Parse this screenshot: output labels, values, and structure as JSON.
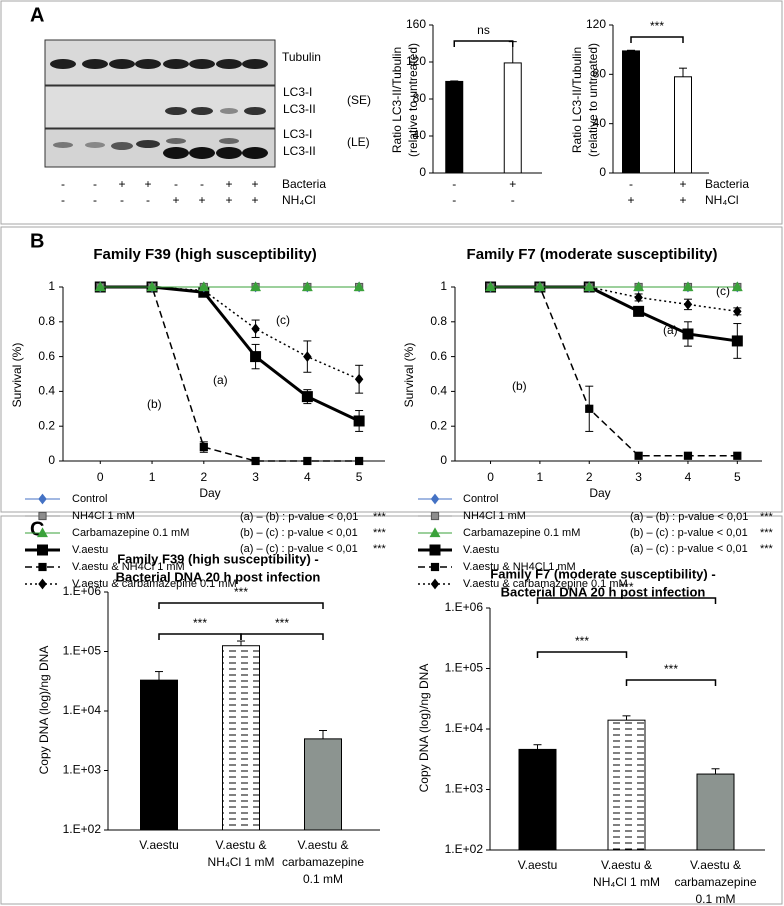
{
  "panel_labels": [
    "A",
    "B",
    "C"
  ],
  "blot": {
    "labels": [
      "Tubulin",
      "LC3-I",
      "LC3-II",
      "(SE)",
      "LC3-I",
      "LC3-II",
      "(LE)"
    ],
    "conditions": [
      {
        "name": "Bacteria",
        "signs": [
          "-",
          "-",
          "+",
          "+",
          "-",
          "-",
          "+",
          "+"
        ]
      },
      {
        "name": "NH₄Cl",
        "signs": [
          "-",
          "-",
          "-",
          "-",
          "+",
          "+",
          "+",
          "+"
        ]
      }
    ]
  },
  "chart_data": [
    {
      "type": "bar",
      "ylabel": [
        "Ratio LC3-II/Tubulin",
        "(relative to untreated)"
      ],
      "values": [
        99,
        119
      ],
      "errors": [
        0.5,
        23
      ],
      "colors": [
        "#000000",
        "#ffffff"
      ],
      "ylim": [
        0,
        160
      ],
      "yticks": [
        0,
        40,
        80,
        120,
        160
      ],
      "conditions": [
        {
          "signs": [
            "-",
            "+"
          ]
        },
        {
          "signs": [
            "-",
            "-"
          ]
        }
      ],
      "brackets": [
        {
          "pair": [
            0,
            1
          ],
          "label": "ns"
        }
      ]
    },
    {
      "type": "bar",
      "ylabel": [
        "Ratio LC3-II/Tubulin",
        "(relative to untreated)"
      ],
      "values": [
        99,
        78
      ],
      "errors": [
        0.5,
        7
      ],
      "colors": [
        "#000000",
        "#ffffff"
      ],
      "ylim": [
        0,
        120
      ],
      "yticks": [
        0,
        40,
        80,
        120
      ],
      "conditions": [
        {
          "name": "Bacteria",
          "signs": [
            "-",
            "+"
          ]
        },
        {
          "name": "NH₄Cl",
          "signs": [
            "+",
            "+"
          ]
        }
      ],
      "brackets": [
        {
          "pair": [
            0,
            1
          ],
          "label": "***"
        }
      ]
    },
    {
      "type": "line",
      "title": "Family F39 (high susceptibility)",
      "ylabel": "Survival (%)",
      "xlabel": "Day",
      "x": [
        0,
        1,
        2,
        3,
        4,
        5
      ],
      "xlim": [
        -0.72,
        5.5
      ],
      "xticks": [
        0,
        1,
        2,
        3,
        4,
        5
      ],
      "ylim": [
        0,
        1
      ],
      "yticks": [
        0,
        0.2,
        0.4,
        0.6,
        0.8,
        1
      ],
      "series": [
        {
          "name": "Control",
          "color": "#4472c4",
          "marker": "diamond",
          "dash": "solid",
          "line_width": 1,
          "values": [
            1,
            1,
            1,
            1,
            1,
            1
          ]
        },
        {
          "name": "NH4Cl 1 mM",
          "color": "#8c8c8c",
          "marker": "square",
          "dash": "solid",
          "line_width": 1,
          "values": [
            1,
            1,
            1,
            1,
            1,
            1
          ]
        },
        {
          "name": "Carbamazepine 0.1 mM",
          "color": "#3aa23a",
          "marker": "triangle",
          "dash": "solid",
          "line_width": 1,
          "values": [
            1,
            1,
            1,
            1,
            1,
            1
          ]
        },
        {
          "name": "V.aestu",
          "color": "#000000",
          "marker": "square",
          "dash": "solid",
          "line_width": 3,
          "values": [
            1,
            1,
            0.97,
            0.6,
            0.37,
            0.23
          ],
          "errors": [
            null,
            null,
            0.02,
            0.07,
            0.04,
            0.06
          ]
        },
        {
          "name": "V.aestu & NH4Cl 1 mM",
          "color": "#000000",
          "marker": "square",
          "dash": "dashed",
          "line_width": 1.5,
          "values": [
            1,
            1,
            0.08,
            0,
            0,
            0
          ],
          "errors": [
            null,
            null,
            0.03,
            null,
            null,
            null
          ]
        },
        {
          "name": "V.aestu & carbamazepine 0.1 mM",
          "color": "#000000",
          "marker": "diamond",
          "dash": "dotted",
          "line_width": 1.5,
          "values": [
            1,
            1,
            0.98,
            0.76,
            0.6,
            0.47
          ],
          "errors": [
            null,
            null,
            null,
            0.05,
            0.09,
            0.08
          ]
        }
      ],
      "annotations": [
        "(a)",
        "(b)",
        "(c)"
      ],
      "notes": [
        {
          "text": "(a) – (b) : p-value < 0,01",
          "sig": "***"
        },
        {
          "text": "(b) – (c) : p-value < 0,01",
          "sig": "***"
        },
        {
          "text": "(a) – (c) : p-value < 0,01",
          "sig": "***"
        }
      ]
    },
    {
      "type": "line",
      "title": "Family F7 (moderate susceptibility)",
      "ylabel": "Survival (%)",
      "xlabel": "Day",
      "x": [
        0,
        1,
        2,
        3,
        4,
        5
      ],
      "xlim": [
        -0.72,
        5.5
      ],
      "xticks": [
        0,
        1,
        2,
        3,
        4,
        5
      ],
      "ylim": [
        0,
        1
      ],
      "yticks": [
        0,
        0.2,
        0.4,
        0.6,
        0.8,
        1
      ],
      "series": [
        {
          "name": "Control",
          "color": "#4472c4",
          "marker": "diamond",
          "dash": "solid",
          "line_width": 1,
          "values": [
            1,
            1,
            1,
            1,
            1,
            1
          ]
        },
        {
          "name": "NH4Cl 1 mM",
          "color": "#8c8c8c",
          "marker": "square",
          "dash": "solid",
          "line_width": 1,
          "values": [
            1,
            1,
            1,
            1,
            1,
            1
          ]
        },
        {
          "name": "Carbamazepine 0.1 mM",
          "color": "#3aa23a",
          "marker": "triangle",
          "dash": "solid",
          "line_width": 1,
          "values": [
            1,
            1,
            1,
            1,
            1,
            1
          ]
        },
        {
          "name": "V.aestu",
          "color": "#000000",
          "marker": "square",
          "dash": "solid",
          "line_width": 3,
          "values": [
            1,
            1,
            1,
            0.86,
            0.73,
            0.69
          ],
          "errors": [
            null,
            null,
            null,
            0.02,
            0.07,
            0.1
          ]
        },
        {
          "name": "V.aestu & NH4Cl 1 mM",
          "color": "#000000",
          "marker": "square",
          "dash": "dashed",
          "line_width": 1.5,
          "values": [
            1,
            1,
            0.3,
            0.03,
            0.03,
            0.03
          ],
          "errors": [
            null,
            null,
            0.13,
            null,
            null,
            null
          ]
        },
        {
          "name": "V.aestu & carbamazepine 0.1 mM",
          "color": "#000000",
          "marker": "diamond",
          "dash": "dotted",
          "line_width": 1.5,
          "values": [
            1,
            1,
            1,
            0.94,
            0.9,
            0.86
          ],
          "errors": [
            null,
            null,
            null,
            0.02,
            0.03,
            0.02
          ]
        }
      ],
      "annotations": [
        "(a)",
        "(b)",
        "(c)"
      ],
      "notes": [
        {
          "text": "(a) – (b) : p-value < 0,01",
          "sig": "***"
        },
        {
          "text": "(b) – (c) : p-value < 0,01",
          "sig": "***"
        },
        {
          "text": "(a) – (c) : p-value < 0,01",
          "sig": "***"
        }
      ]
    },
    {
      "type": "bar",
      "title": "Family F39 (high susceptibility) -",
      "subtitle": "Bacterial DNA 20 h post infection",
      "ylabel": "Copy DNA (log)/ng DNA",
      "categories": [
        "V.aestu",
        "V.aestu & NH₄Cl 1 mM",
        "V.aestu & carbamazepine 0.1 mM"
      ],
      "values": [
        33000,
        125000,
        3400
      ],
      "errors": [
        13000,
        25000,
        1300
      ],
      "colors": [
        "#000000",
        "#ffffff",
        "#8c9490"
      ],
      "hatch": [
        null,
        "dashes",
        null
      ],
      "log_scale": true,
      "ylim": [
        100,
        1000000
      ],
      "yticks": [
        {
          "value": 100,
          "label": "1.E+02"
        },
        {
          "value": 1000,
          "label": "1.E+03"
        },
        {
          "value": 10000,
          "label": "1.E+04"
        },
        {
          "value": 100000,
          "label": "1.E+05"
        },
        {
          "value": 1000000,
          "label": "1.E+06"
        }
      ],
      "brackets": [
        {
          "pair": [
            0,
            2
          ],
          "label": "***"
        },
        {
          "pair": [
            0,
            1
          ],
          "label": "***"
        },
        {
          "pair": [
            1,
            2
          ],
          "label": "***"
        }
      ]
    },
    {
      "type": "bar",
      "title": "Family F7 (moderate susceptibility) -",
      "subtitle": "Bacterial DNA 20 h post infection",
      "ylabel": "Copy DNA (log)/ng DNA",
      "categories": [
        "V.aestu",
        "V.aestu & NH₄Cl 1 mM",
        "V.aestu & carbamazepine 0.1 mM"
      ],
      "values": [
        4600,
        14000,
        1800
      ],
      "errors": [
        900,
        2500,
        400
      ],
      "colors": [
        "#000000",
        "#ffffff",
        "#8c9490"
      ],
      "hatch": [
        null,
        "dashes",
        null
      ],
      "log_scale": true,
      "ylim": [
        100,
        1000000
      ],
      "yticks": [
        {
          "value": 100,
          "label": "1.E+02"
        },
        {
          "value": 1000,
          "label": "1.E+03"
        },
        {
          "value": 10000,
          "label": "1.E+04"
        },
        {
          "value": 100000,
          "label": "1.E+05"
        },
        {
          "value": 1000000,
          "label": "1.E+06"
        }
      ],
      "brackets": [
        {
          "pair": [
            0,
            2
          ],
          "label": "***"
        },
        {
          "pair": [
            0,
            1
          ],
          "label": "***"
        },
        {
          "pair": [
            1,
            2
          ],
          "label": "***"
        }
      ]
    }
  ]
}
